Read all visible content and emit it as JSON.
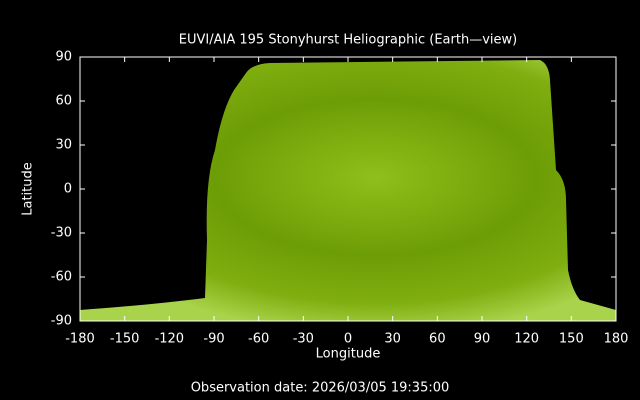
{
  "chart_data": {
    "type": "image",
    "title": "EUVI/AIA 195 Stonyhurst Heliographic (Earth—view)",
    "x_label": "Longitude",
    "y_label": "Latitude",
    "xlim": [
      -180,
      180
    ],
    "ylim": [
      -90,
      90
    ],
    "xticks": [
      -180,
      -150,
      -120,
      -90,
      -60,
      -30,
      0,
      30,
      60,
      90,
      120,
      150,
      180
    ],
    "yticks": [
      -90,
      -60,
      -30,
      0,
      30,
      60,
      90
    ],
    "footer": "Observation date: 2026/03/05 19:35:00"
  }
}
